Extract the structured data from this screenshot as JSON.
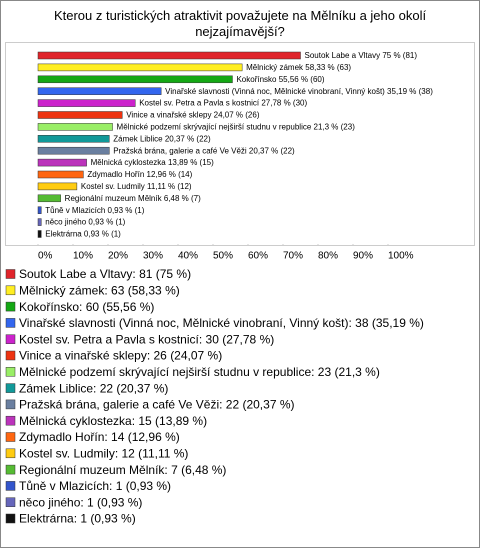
{
  "chart_data": {
    "type": "bar",
    "title": "Kterou z turistických atraktivit považujete na Mělníku a jeho okolí nejzajímavější?",
    "categories": [
      "Soutok Labe a Vltavy",
      "Mělnický zámek",
      "Kokořínsko",
      "Vinařské slavnosti (Vinná noc, Mělnické vinobraní, Vinný košt)",
      "Kostel sv. Petra a Pavla s kostnicí",
      "Vinice a vinařské sklepy",
      "Mělnické podzemí skrývající nejširší studnu v republice",
      "Zámek Liblice",
      "Pražská brána, galerie a café Ve Věži",
      "Mělnická cyklostezka",
      "Zdymadlo Hořín",
      "Kostel sv. Ludmily",
      "Regionální muzeum Mělník",
      "Tůně v Mlazicích",
      "něco jiného",
      "Elektrárna"
    ],
    "values": [
      75,
      58.33,
      55.56,
      35.19,
      27.78,
      24.07,
      21.3,
      20.37,
      20.37,
      13.89,
      12.96,
      11.11,
      6.48,
      0.93,
      0.93,
      0.93
    ],
    "value_labels": [
      "Soutok Labe a Vltavy 75 % (81)",
      "Mělnický zámek 58,33 % (63)",
      "Kokořínsko 55,56 % (60)",
      "Vinařské slavnosti (Vinná noc, Mělnické vinobraní, Vinný košt) 35,19 % (38)",
      "Kostel sv. Petra a Pavla s kostnicí 27,78 % (30)",
      "Vinice a vinařské sklepy 24,07 % (26)",
      "Mělnické podzemí skrývající nejširší studnu v republice 21,3 % (23)",
      "Zámek Liblice 20,37 % (22)",
      "Pražská brána, galerie a café Ve Věži 20,37 % (22)",
      "Mělnická cyklostezka 13,89 % (15)",
      "Zdymadlo Hořín 12,96 % (14)",
      "Kostel sv. Ludmily 11,11 % (12)",
      "Regionální muzeum Mělník 6,48 % (7)",
      "Tůně v Mlazicích 0,93 % (1)",
      "něco jiného 0,93 % (1)",
      "Elektrárna 0,93 % (1)"
    ],
    "legend_labels": [
      "Soutok Labe a Vltavy: 81 (75 %)",
      "Mělnický zámek: 63 (58,33 %)",
      "Kokořínsko: 60 (55,56 %)",
      "Vinařské slavnosti (Vinná noc, Mělnické vinobraní, Vinný košt): 38 (35,19 %)",
      "Kostel sv. Petra a Pavla s kostnicí: 30 (27,78 %)",
      "Vinice a vinařské sklepy: 26 (24,07 %)",
      "Mělnické podzemí skrývající nejširší studnu v republice: 23 (21,3 %)",
      "Zámek Liblice: 22 (20,37 %)",
      "Pražská brána, galerie a café Ve Věži: 22 (20,37 %)",
      "Mělnická cyklostezka: 15 (13,89 %)",
      "Zdymadlo Hořín: 14 (12,96 %)",
      "Kostel sv. Ludmily: 12 (11,11 %)",
      "Regionální muzeum Mělník: 7 (6,48 %)",
      "Tůně v Mlazicích: 1 (0,93 %)",
      "něco jiného: 1 (0,93 %)",
      "Elektrárna: 1 (0,93 %)"
    ],
    "colors": [
      "#e0242b",
      "#ffee22",
      "#14a814",
      "#3366ee",
      "#cc22cc",
      "#ee3311",
      "#99ee66",
      "#119999",
      "#6a7fa0",
      "#bb33bb",
      "#ff6611",
      "#ffcc11",
      "#55bb33",
      "#3355cc",
      "#6666bb",
      "#111111"
    ],
    "xlim": [
      0,
      100
    ],
    "xticks": [
      {
        "value": 0,
        "label": "0%"
      },
      {
        "value": 10,
        "label": "10%"
      },
      {
        "value": 20,
        "label": "20%"
      },
      {
        "value": 30,
        "label": "30%"
      },
      {
        "value": 40,
        "label": "40%"
      },
      {
        "value": 50,
        "label": "50%"
      },
      {
        "value": 60,
        "label": "60%"
      },
      {
        "value": 70,
        "label": "70%"
      },
      {
        "value": 80,
        "label": "80%"
      },
      {
        "value": 90,
        "label": "90%"
      },
      {
        "value": 100,
        "label": "100%"
      }
    ]
  }
}
